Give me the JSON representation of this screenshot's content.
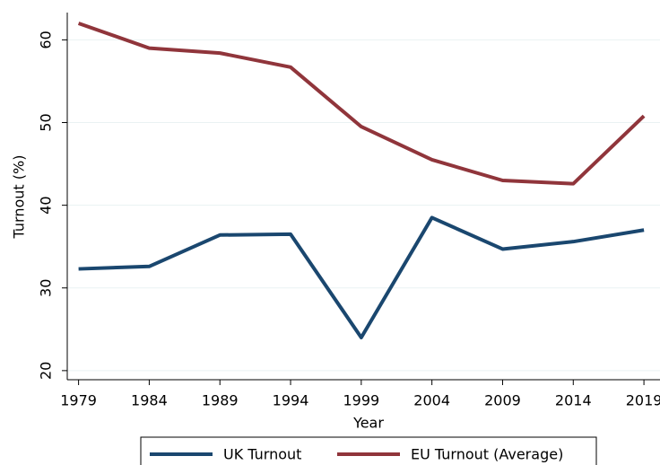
{
  "chart_data": {
    "type": "line",
    "x": [
      1979,
      1984,
      1989,
      1994,
      1999,
      2004,
      2009,
      2014,
      2019
    ],
    "series": [
      {
        "name": "UK Turnout",
        "color": "#1a476f",
        "values": [
          32.3,
          32.6,
          36.4,
          36.5,
          24.0,
          38.5,
          34.7,
          35.6,
          37.0
        ]
      },
      {
        "name": "EU Turnout (Average)",
        "color": "#90353b",
        "values": [
          62.0,
          59.0,
          58.4,
          56.7,
          49.5,
          45.5,
          43.0,
          42.6,
          50.8
        ]
      }
    ],
    "xlabel": "Year",
    "ylabel": "Turnout (%)",
    "xlim": [
      1978.2,
      2020.2
    ],
    "xticks": [
      1979,
      1984,
      1989,
      1994,
      1999,
      2004,
      2009,
      2014,
      2019
    ],
    "ylim": [
      18.9,
      63.3
    ],
    "yticks": [
      20,
      30,
      40,
      50,
      60
    ],
    "grid": true,
    "legend": "bottom"
  }
}
